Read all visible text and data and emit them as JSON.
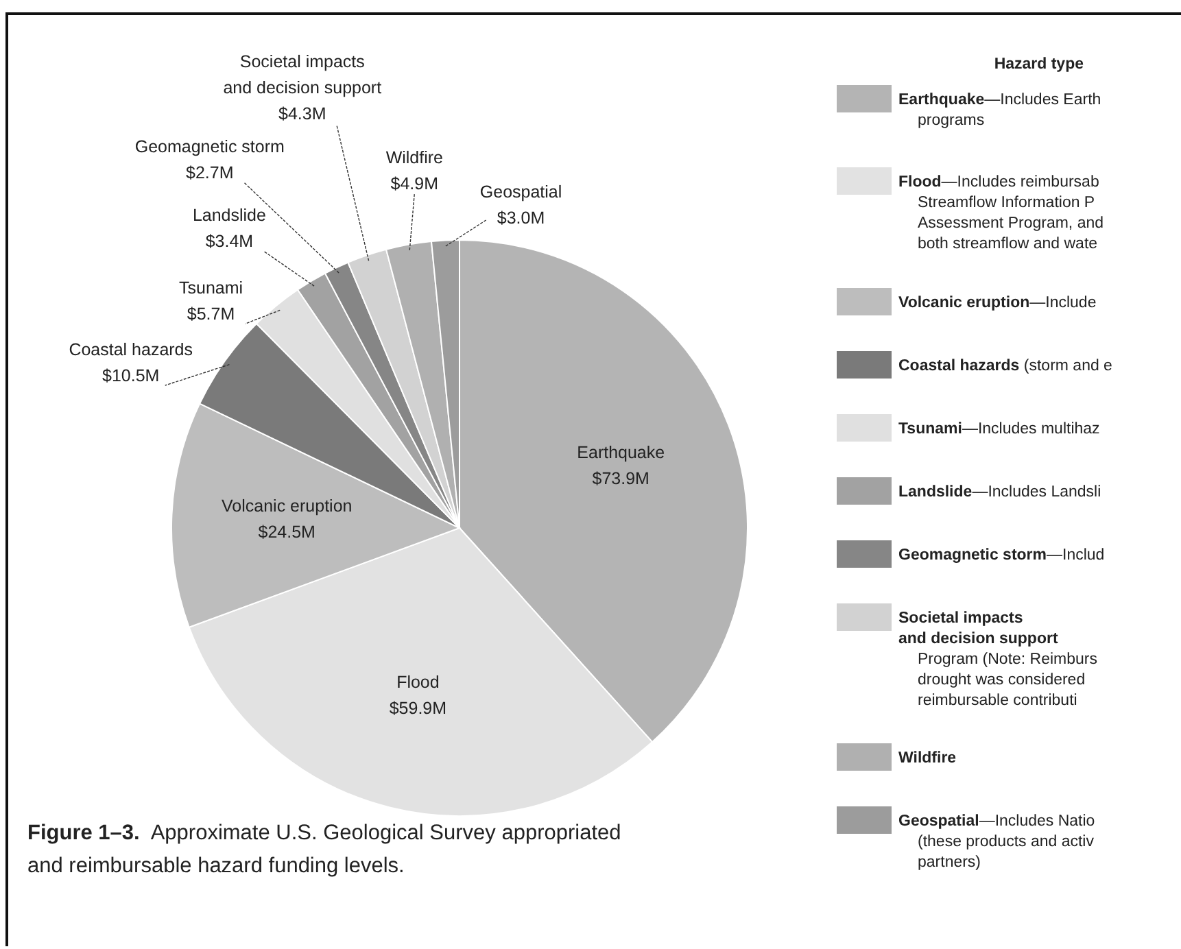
{
  "chart_data": {
    "type": "pie",
    "title": "Figure 1–3. Approximate U.S. Geological Survey appropriated\nand reimbursable hazard funding levels.",
    "legend_title": "Hazard type",
    "legend": "right",
    "categories": [
      "Earthquake",
      "Flood",
      "Volcanic eruption",
      "Coastal hazards",
      "Tsunami",
      "Landslide",
      "Geomagnetic storm",
      "Societal impacts and decision support",
      "Wildfire",
      "Geospatial"
    ],
    "values": [
      73.9,
      59.9,
      24.5,
      10.5,
      5.7,
      3.4,
      2.7,
      4.3,
      4.9,
      3.0
    ],
    "value_labels": [
      "$73.9M",
      "$59.9M",
      "$24.5M",
      "$10.5M",
      "$5.7M",
      "$3.4M",
      "$2.7M",
      "$4.3M",
      "$4.9M",
      "$3.0M"
    ],
    "colors": [
      "#b4b4b4",
      "#e2e2e2",
      "#bdbdbd",
      "#7a7a7a",
      "#e0e0e0",
      "#a2a2a2",
      "#868686",
      "#d2d2d2",
      "#b0b0b0",
      "#9c9c9c"
    ],
    "annotations": [
      "—Includes Earth\nprograms",
      "—Includes reimbursab\nStreamflow Information P\nAssessment Program, and\nboth streamflow and wate",
      "—Include",
      "(storm and e",
      "—Includes multihaz",
      "—Includes Landsli",
      "—Includ",
      "\nProgram (Note: Reimburs\ndrought was considered\nreimbursable contributi",
      null,
      "—Includes Natio\n(these products and activ\npartners)"
    ]
  }
}
